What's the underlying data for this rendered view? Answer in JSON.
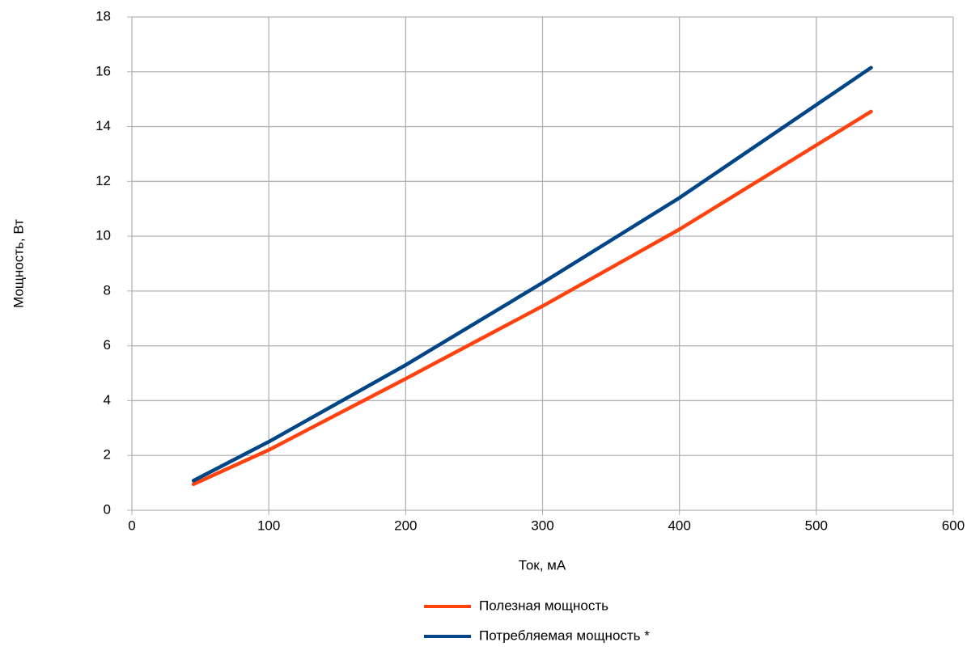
{
  "chart_data": {
    "type": "line",
    "x_label": "Ток, мА",
    "y_label": "Мощность, Вт",
    "x": [
      45,
      100,
      200,
      300,
      400,
      540
    ],
    "series": [
      {
        "name": "Полезная мощность",
        "color": "#ff420e",
        "values": [
          0.95,
          2.2,
          4.8,
          7.45,
          10.25,
          14.55
        ]
      },
      {
        "name": "Потребляемая мощность *",
        "color": "#004586",
        "values": [
          1.08,
          2.5,
          5.3,
          8.3,
          11.4,
          16.15
        ]
      }
    ],
    "xlim": [
      0,
      600
    ],
    "xticks": [
      0,
      100,
      200,
      300,
      400,
      500,
      600
    ],
    "ylim": [
      0,
      18
    ],
    "yticks": [
      0,
      2,
      4,
      6,
      8,
      10,
      12,
      14,
      16,
      18
    ],
    "grid": true,
    "legend": "bottom"
  }
}
